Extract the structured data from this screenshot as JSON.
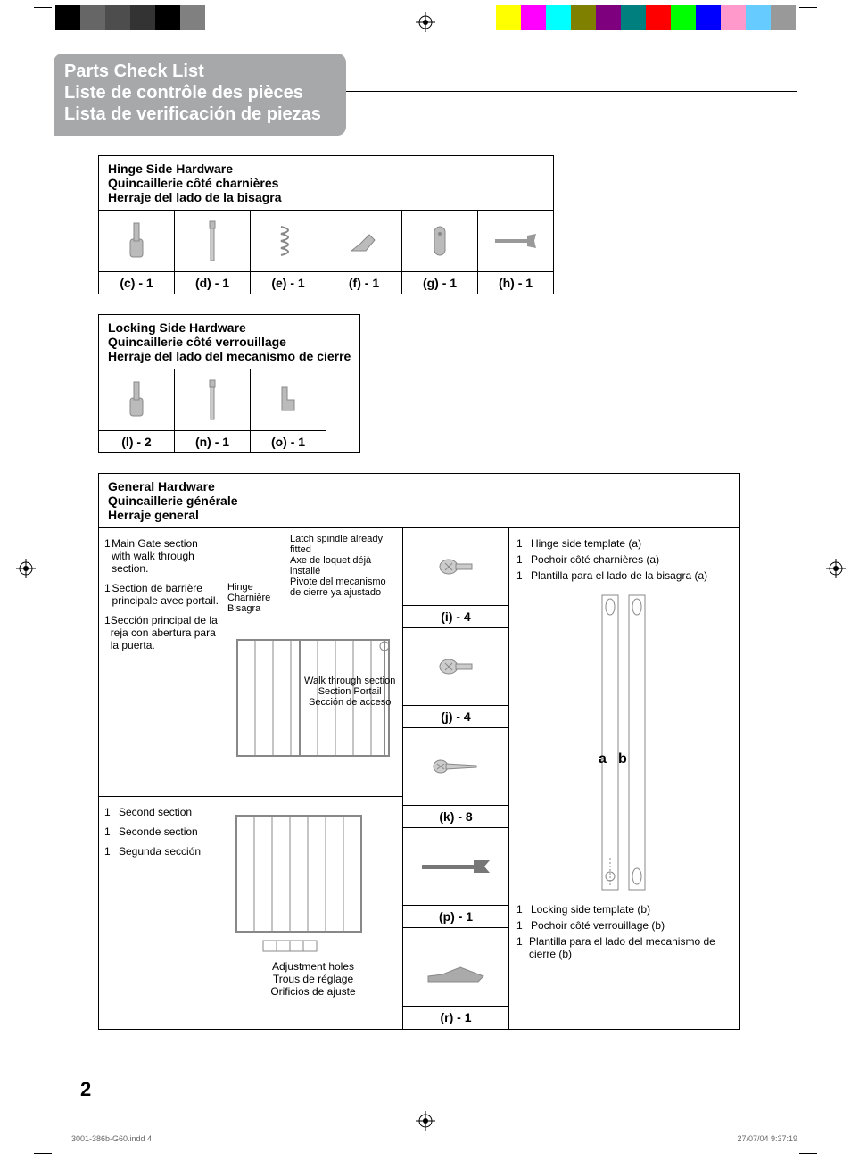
{
  "colorbars_left": [
    "#000000",
    "#666666",
    "#4d4d4d",
    "#333333",
    "#000000",
    "#808080"
  ],
  "colorbars_right": [
    "#ffff00",
    "#ff00ff",
    "#00ffff",
    "#7f7f00",
    "#7f007f",
    "#007f7f",
    "#ff0000",
    "#00ff00",
    "#0000ff",
    "#ff99cc",
    "#66ccff",
    "#999999"
  ],
  "title": {
    "en": "Parts Check List",
    "fr": "Liste de contrôle des pièces",
    "es": "Lista de verificación de piezas"
  },
  "hinge_side": {
    "header_en": "Hinge Side Hardware",
    "header_fr": "Quincaillerie côté charnières",
    "header_es": "Herraje del lado de la bisagra",
    "parts": [
      {
        "label": "(c) - 1"
      },
      {
        "label": "(d) - 1"
      },
      {
        "label": "(e) - 1"
      },
      {
        "label": "(f) - 1"
      },
      {
        "label": "(g) - 1"
      },
      {
        "label": "(h) - 1"
      }
    ]
  },
  "locking_side": {
    "header_en": "Locking Side Hardware",
    "header_fr": "Quincaillerie côté verrouillage",
    "header_es": "Herraje del lado del mecanismo de cierre",
    "parts": [
      {
        "label": "(l) - 2"
      },
      {
        "label": "(n) - 1"
      },
      {
        "label": "(o) - 1"
      }
    ]
  },
  "general": {
    "header_en": "General Hardware",
    "header_fr": "Quincaillerie générale",
    "header_es": "Herraje general",
    "main_gate": {
      "qty": "1",
      "en": "Main Gate section with walk through section.",
      "fr": "Section de barrière principale avec portail.",
      "es": "Sección principal de la reja con abertura para la puerta."
    },
    "second_section": {
      "qty": "1",
      "en": "Second section",
      "fr": "Seconde section",
      "es": "Segunda sección"
    },
    "latch_spindle": {
      "en": "Latch spindle already fitted",
      "fr": "Axe de loquet déjà installé",
      "es": "Pivote del mecanismo de cierre ya ajustado"
    },
    "hinge_label": {
      "en": "Hinge",
      "fr": "Charnière",
      "es": "Bisagra"
    },
    "walk_through": {
      "en": "Walk through section",
      "fr": "Section Portail",
      "es": "Sección de acceso"
    },
    "adjustment": {
      "en": "Adjustment holes",
      "fr": "Trous de réglage",
      "es": "Orificios de ajuste"
    },
    "screws": [
      {
        "label": "(i) - 4"
      },
      {
        "label": "(j) - 4"
      },
      {
        "label": "(k) - 8"
      },
      {
        "label": "(p) - 1"
      },
      {
        "label": "(r) - 1"
      }
    ],
    "template_a": {
      "qty": "1",
      "en": "Hinge side template (a)",
      "fr": "Pochoir côté charnières (a)",
      "es": "Plantilla para el lado de la bisagra (a)"
    },
    "template_b": {
      "qty": "1",
      "en": "Locking side template (b)",
      "fr": "Pochoir côté verrouillage (b)",
      "es": "Plantilla para el lado del mecanismo de cierre (b)"
    },
    "ab": {
      "a": "a",
      "b": "b"
    }
  },
  "page_number": "2",
  "footer_file": "3001-386b-G60.indd   4",
  "footer_date": "27/07/04  9:37:19"
}
